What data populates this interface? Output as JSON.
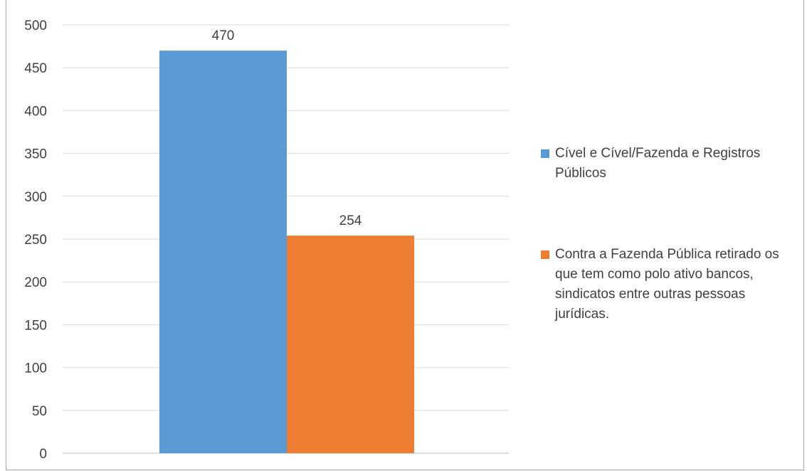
{
  "chart_data": {
    "type": "bar",
    "title": "",
    "categories": [
      ""
    ],
    "series": [
      {
        "name": "Cível e Cível/Fazenda e Registros Públicos",
        "values": [
          470
        ],
        "color": "#5b9bd5"
      },
      {
        "name": "Contra a Fazenda Pública retirado os que tem como polo ativo bancos, sindicatos entre outras pessoas jurídicas.",
        "values": [
          254
        ],
        "color": "#ed7d31"
      }
    ],
    "ylim": [
      0,
      500
    ],
    "yticks": [
      "0",
      "50",
      "100",
      "150",
      "200",
      "250",
      "300",
      "350",
      "400",
      "450",
      "500"
    ],
    "data_labels": [
      "470",
      "254"
    ],
    "grid": true,
    "legend_position": "right",
    "xlabel": "",
    "ylabel": ""
  }
}
